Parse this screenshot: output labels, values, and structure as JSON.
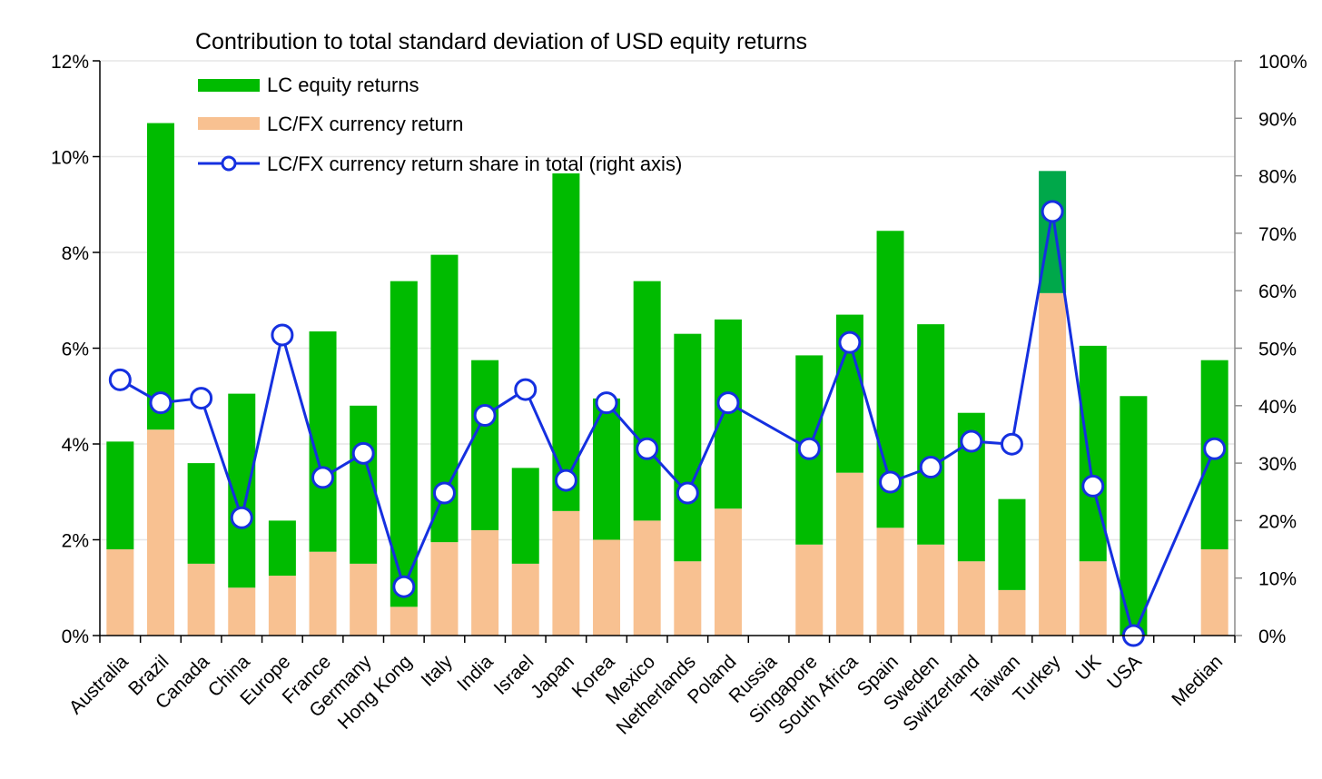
{
  "chart_data": {
    "type": "bar",
    "stacked": true,
    "title": "Contribution to total standard deviation of USD equity returns",
    "categories": [
      "Australia",
      "Brazil",
      "Canada",
      "China",
      "Europe",
      "France",
      "Germany",
      "Hong Kong",
      "Italy",
      "India",
      "Israel",
      "Japan",
      "Korea",
      "Mexico",
      "Netherlands",
      "Poland",
      "Russia",
      "Singapore",
      "South Africa",
      "Spain",
      "Sweden",
      "Switzerland",
      "Taiwan",
      "Turkey",
      "UK",
      "USA",
      "",
      "Median"
    ],
    "y_left": {
      "min": 0,
      "max": 12,
      "ticks": [
        0,
        2,
        4,
        6,
        8,
        10,
        12
      ],
      "tick_labels": [
        "0%",
        "2%",
        "4%",
        "6%",
        "8%",
        "10%",
        "12%"
      ]
    },
    "y_right": {
      "min": 0,
      "max": 100,
      "ticks": [
        0,
        10,
        20,
        30,
        40,
        50,
        60,
        70,
        80,
        90,
        100
      ],
      "tick_labels": [
        "0%",
        "10%",
        "20%",
        "30%",
        "40%",
        "50%",
        "60%",
        "70%",
        "80%",
        "90%",
        "100%"
      ]
    },
    "series": [
      {
        "name": "LC/FX currency return",
        "kind": "bar",
        "axis": "left",
        "color": "#F8C191",
        "values": [
          1.8,
          4.3,
          1.5,
          1.0,
          1.25,
          1.75,
          1.5,
          0.6,
          1.95,
          2.2,
          1.5,
          2.6,
          2.0,
          2.4,
          1.55,
          2.65,
          null,
          1.9,
          3.4,
          2.25,
          1.9,
          1.55,
          0.95,
          7.15,
          1.55,
          0.0,
          null,
          1.8
        ]
      },
      {
        "name": "LC equity returns",
        "kind": "bar",
        "axis": "left",
        "color": "#00BB00",
        "values": [
          2.25,
          6.4,
          2.1,
          4.05,
          1.15,
          4.6,
          3.3,
          6.8,
          6.0,
          3.55,
          2.0,
          7.05,
          2.95,
          5.0,
          4.75,
          3.95,
          null,
          3.95,
          3.3,
          6.2,
          4.6,
          3.1,
          1.9,
          2.55,
          4.5,
          5.0,
          null,
          3.95
        ]
      },
      {
        "name": "LC/FX currency return share in total (right axis)",
        "kind": "line",
        "axis": "right",
        "color": "#1530E0",
        "values": [
          44.5,
          40.5,
          41.3,
          20.5,
          52.3,
          27.5,
          31.7,
          8.5,
          24.8,
          38.3,
          42.8,
          27.0,
          40.5,
          32.5,
          24.8,
          40.5,
          null,
          32.5,
          51.0,
          26.7,
          29.3,
          33.8,
          33.3,
          73.8,
          26.0,
          0.0,
          null,
          32.5
        ]
      }
    ],
    "legend": {
      "position": "top-left",
      "items": [
        "LC equity returns",
        "LC/FX currency return",
        "LC/FX currency return share in total (right axis)"
      ]
    },
    "xlabel": "",
    "ylabel": ""
  }
}
